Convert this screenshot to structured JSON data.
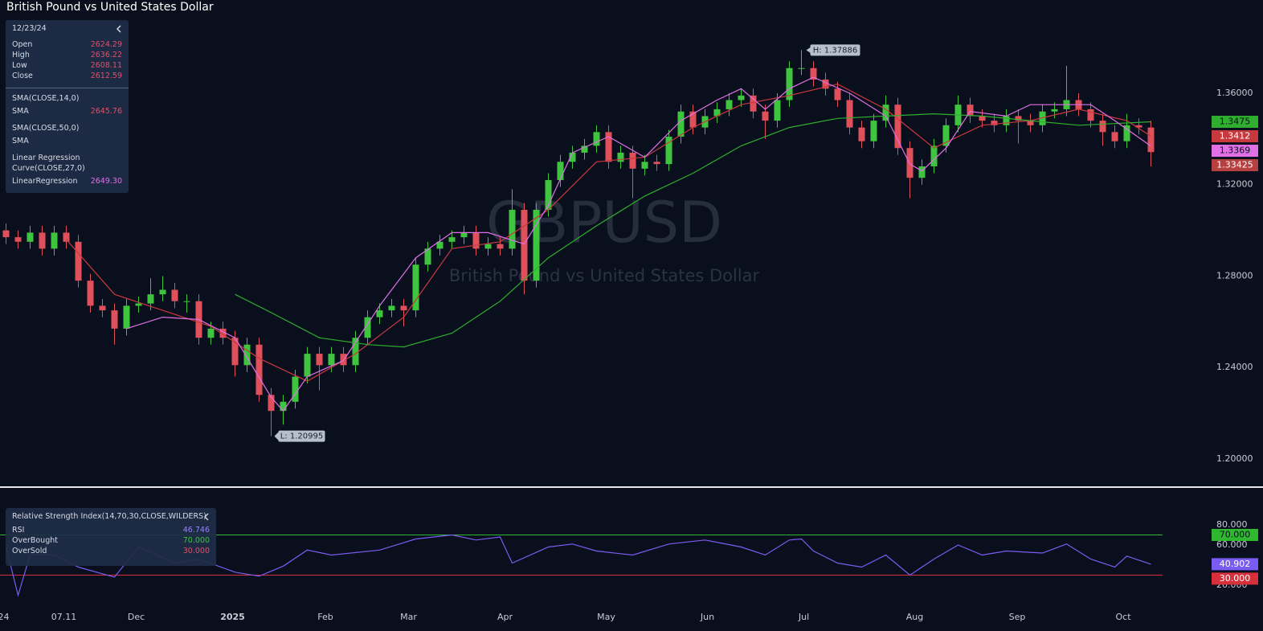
{
  "title": "British Pound vs United States Dollar",
  "watermark": {
    "symbol": "GBPUSD",
    "name": "British Pound vs United States Dollar"
  },
  "info_panel": {
    "date": "12/23/24",
    "ohlc": [
      {
        "label": "Open",
        "value": "2624.29"
      },
      {
        "label": "High",
        "value": "2636.22"
      },
      {
        "label": "Low",
        "value": "2608.11"
      },
      {
        "label": "Close",
        "value": "2612.59"
      }
    ],
    "indicators": [
      {
        "title": "SMA(CLOSE,14,0)",
        "label": "SMA",
        "value": "2645.76"
      },
      {
        "title": "SMA(CLOSE,50,0)",
        "label": "SMA"
      },
      {
        "title": "Linear Regression Curve(CLOSE,27,0)",
        "label": "LinearRegression",
        "value": "2649.30"
      }
    ]
  },
  "chart_data": [
    {
      "type": "candlestick",
      "xlim": [
        -0.5,
        99.5
      ],
      "ylim": [
        1.188,
        1.4008
      ],
      "yticks": [
        {
          "value": 1.36,
          "label": "1.36000"
        },
        {
          "value": 1.32,
          "label": "1.32000"
        },
        {
          "value": 1.28,
          "label": "1.28000"
        },
        {
          "value": 1.24,
          "label": "1.24000"
        },
        {
          "value": 1.2,
          "label": "1.20000"
        }
      ],
      "xticks": [
        {
          "value": -0.2,
          "label": "24"
        },
        {
          "value": 4.8,
          "label": "07.11"
        },
        {
          "value": 10.8,
          "label": "Dec"
        },
        {
          "value": 18.8,
          "label": "2025",
          "bold": true
        },
        {
          "value": 26.5,
          "label": "Feb"
        },
        {
          "value": 33.4,
          "label": "Mar"
        },
        {
          "value": 41.4,
          "label": "Apr"
        },
        {
          "value": 49.8,
          "label": "May"
        },
        {
          "value": 58.2,
          "label": "Jun"
        },
        {
          "value": 66.2,
          "label": "Jul"
        },
        {
          "value": 75.4,
          "label": "Aug"
        },
        {
          "value": 83.9,
          "label": "Sep"
        },
        {
          "value": 92.7,
          "label": "Oct"
        }
      ],
      "up_color": "#3ec43e",
      "down_color": "#e0505a",
      "last_color": "#b5403f",
      "high_label": "H: 1.37886",
      "low_label": "L: 1.20995",
      "open": [
        1.3,
        1.297,
        1.295,
        1.299,
        1.292,
        1.299,
        1.295,
        1.278,
        1.267,
        1.265,
        1.257,
        1.267,
        1.268,
        1.272,
        1.274,
        1.269,
        1.269,
        1.253,
        1.257,
        1.253,
        1.241,
        1.25,
        1.228,
        1.221,
        1.225,
        1.236,
        1.246,
        1.241,
        1.246,
        1.241,
        1.253,
        1.262,
        1.265,
        1.267,
        1.265,
        1.285,
        1.292,
        1.295,
        1.297,
        1.299,
        1.292,
        1.294,
        1.292,
        1.309,
        1.278,
        1.309,
        1.322,
        1.33,
        1.334,
        1.337,
        1.343,
        1.33,
        1.334,
        1.327,
        1.33,
        1.329,
        1.341,
        1.352,
        1.345,
        1.35,
        1.353,
        1.357,
        1.359,
        1.352,
        1.348,
        1.357,
        1.371,
        1.371,
        1.366,
        1.362,
        1.357,
        1.345,
        1.339,
        1.348,
        1.355,
        1.336,
        1.323,
        1.328,
        1.337,
        1.346,
        1.355,
        1.35,
        1.348,
        1.346,
        1.35,
        1.348,
        1.346,
        1.352,
        1.353,
        1.357,
        1.353,
        1.348,
        1.343,
        1.339,
        1.346,
        1.345
      ],
      "high": [
        1.303,
        1.3,
        1.302,
        1.302,
        1.302,
        1.302,
        1.298,
        1.281,
        1.27,
        1.268,
        1.27,
        1.271,
        1.279,
        1.28,
        1.277,
        1.272,
        1.272,
        1.26,
        1.26,
        1.256,
        1.253,
        1.253,
        1.231,
        1.228,
        1.239,
        1.249,
        1.249,
        1.249,
        1.249,
        1.256,
        1.265,
        1.268,
        1.27,
        1.27,
        1.288,
        1.295,
        1.298,
        1.3,
        1.302,
        1.302,
        1.297,
        1.297,
        1.318,
        1.312,
        1.312,
        1.325,
        1.333,
        1.337,
        1.34,
        1.346,
        1.346,
        1.337,
        1.337,
        1.333,
        1.333,
        1.344,
        1.355,
        1.355,
        1.353,
        1.356,
        1.36,
        1.362,
        1.362,
        1.355,
        1.36,
        1.374,
        1.37886,
        1.374,
        1.369,
        1.365,
        1.36,
        1.348,
        1.351,
        1.359,
        1.358,
        1.339,
        1.331,
        1.34,
        1.349,
        1.359,
        1.358,
        1.353,
        1.351,
        1.353,
        1.353,
        1.351,
        1.355,
        1.356,
        1.372,
        1.36,
        1.356,
        1.351,
        1.346,
        1.351,
        1.349,
        1.348
      ],
      "low": [
        1.294,
        1.292,
        1.292,
        1.289,
        1.289,
        1.292,
        1.275,
        1.264,
        1.262,
        1.25,
        1.254,
        1.264,
        1.265,
        1.269,
        1.266,
        1.264,
        1.25,
        1.25,
        1.25,
        1.236,
        1.238,
        1.225,
        1.20995,
        1.215,
        1.222,
        1.233,
        1.23,
        1.238,
        1.238,
        1.238,
        1.25,
        1.259,
        1.262,
        1.258,
        1.262,
        1.282,
        1.289,
        1.292,
        1.294,
        1.289,
        1.289,
        1.289,
        1.289,
        1.272,
        1.275,
        1.306,
        1.319,
        1.327,
        1.331,
        1.334,
        1.327,
        1.327,
        1.314,
        1.324,
        1.326,
        1.326,
        1.338,
        1.342,
        1.342,
        1.347,
        1.35,
        1.354,
        1.349,
        1.34,
        1.345,
        1.354,
        1.368,
        1.363,
        1.359,
        1.354,
        1.342,
        1.336,
        1.336,
        1.345,
        1.333,
        1.314,
        1.32,
        1.325,
        1.334,
        1.343,
        1.347,
        1.345,
        1.343,
        1.343,
        1.338,
        1.343,
        1.343,
        1.349,
        1.35,
        1.35,
        1.345,
        1.337,
        1.336,
        1.336,
        1.342,
        1.328
      ],
      "close": [
        1.297,
        1.295,
        1.299,
        1.292,
        1.299,
        1.295,
        1.278,
        1.267,
        1.265,
        1.257,
        1.267,
        1.268,
        1.272,
        1.274,
        1.269,
        1.269,
        1.253,
        1.257,
        1.253,
        1.241,
        1.25,
        1.228,
        1.221,
        1.225,
        1.236,
        1.246,
        1.241,
        1.246,
        1.241,
        1.253,
        1.262,
        1.265,
        1.267,
        1.265,
        1.285,
        1.292,
        1.295,
        1.297,
        1.299,
        1.292,
        1.294,
        1.292,
        1.309,
        1.278,
        1.309,
        1.322,
        1.33,
        1.334,
        1.337,
        1.343,
        1.33,
        1.334,
        1.327,
        1.33,
        1.329,
        1.341,
        1.352,
        1.345,
        1.35,
        1.353,
        1.357,
        1.359,
        1.352,
        1.348,
        1.357,
        1.371,
        1.371,
        1.366,
        1.362,
        1.357,
        1.345,
        1.339,
        1.348,
        1.355,
        1.336,
        1.323,
        1.328,
        1.337,
        1.346,
        1.355,
        1.35,
        1.348,
        1.346,
        1.35,
        1.348,
        1.346,
        1.352,
        1.353,
        1.357,
        1.353,
        1.348,
        1.343,
        1.339,
        1.346,
        1.345,
        1.33425
      ],
      "lines": [
        {
          "color": "#c8393e",
          "x": [
            5,
            9,
            13,
            17,
            21,
            25,
            29,
            33,
            37,
            41,
            45,
            49,
            53,
            57,
            61,
            65,
            69,
            73,
            77,
            81,
            85,
            89,
            93,
            95
          ],
          "values": [
            1.296,
            1.272,
            1.265,
            1.258,
            1.244,
            1.234,
            1.246,
            1.262,
            1.292,
            1.295,
            1.309,
            1.33,
            1.332,
            1.345,
            1.355,
            1.359,
            1.364,
            1.353,
            1.336,
            1.346,
            1.348,
            1.353,
            1.348,
            1.3412
          ]
        },
        {
          "color": "#2fae2f",
          "x": [
            19,
            22,
            26,
            30,
            33,
            37,
            41,
            45,
            49,
            53,
            57,
            61,
            65,
            69,
            73,
            77,
            81,
            85,
            89,
            93,
            95
          ],
          "values": [
            1.272,
            1.264,
            1.253,
            1.25,
            1.249,
            1.255,
            1.269,
            1.288,
            1.302,
            1.315,
            1.325,
            1.337,
            1.345,
            1.349,
            1.35,
            1.351,
            1.35,
            1.348,
            1.346,
            1.347,
            1.3475
          ]
        },
        {
          "color": "#e070e6",
          "x": [
            10,
            13,
            16,
            19,
            22,
            23,
            25,
            28,
            31,
            34,
            37,
            40,
            43,
            45,
            47,
            50,
            53,
            56,
            59,
            61,
            63,
            65,
            67,
            70,
            73,
            75,
            76,
            78,
            80,
            83,
            85,
            88,
            90,
            92,
            95
          ],
          "values": [
            1.257,
            1.262,
            1.261,
            1.253,
            1.227,
            1.221,
            1.236,
            1.243,
            1.267,
            1.288,
            1.299,
            1.299,
            1.294,
            1.311,
            1.334,
            1.341,
            1.332,
            1.348,
            1.357,
            1.362,
            1.353,
            1.362,
            1.367,
            1.36,
            1.35,
            1.329,
            1.326,
            1.336,
            1.352,
            1.35,
            1.355,
            1.355,
            1.355,
            1.348,
            1.3369
          ]
        }
      ]
    },
    {
      "type": "line",
      "title": "Relative Strength Index(14,70,30,CLOSE,WILDERS)",
      "xlim": [
        -0.5,
        99.5
      ],
      "ylim": [
        -5.6,
        116.8
      ],
      "yticks": [
        {
          "value": 80,
          "label": "80.000"
        },
        {
          "value": 60,
          "label": "60.000"
        },
        {
          "value": 20,
          "label": "20.000"
        }
      ],
      "legend": [
        {
          "name": "RSI",
          "value": "46.746"
        },
        {
          "name": "OverBought",
          "value": "70.000"
        },
        {
          "name": "OverSold",
          "value": "30.000"
        }
      ],
      "levels": [
        {
          "value": 70,
          "label": "70.000",
          "color": "#2fb82f"
        },
        {
          "value": 30,
          "label": "30.000",
          "color": "#d8303a"
        }
      ],
      "series": [
        {
          "color": "#7b5cf2",
          "x": [
            0,
            1,
            2,
            4,
            6,
            9,
            11,
            14,
            16,
            19,
            21,
            23,
            25,
            27,
            31,
            34,
            37,
            39,
            41,
            42,
            45,
            47,
            49,
            52,
            55,
            58,
            61,
            63,
            65,
            66,
            67,
            69,
            71,
            73,
            75,
            77,
            79,
            81,
            83,
            86,
            88,
            90,
            92,
            93,
            95
          ],
          "values": [
            58,
            10,
            50,
            50,
            38,
            28,
            58,
            42,
            46,
            33,
            29,
            39,
            55,
            50,
            55,
            66,
            70,
            65,
            68,
            42,
            58,
            61,
            54,
            50,
            61,
            65,
            58,
            50,
            65,
            66,
            54,
            42,
            38,
            50,
            30,
            46,
            60,
            50,
            54,
            52,
            61,
            46,
            38,
            49,
            40.902
          ]
        }
      ]
    }
  ]
}
